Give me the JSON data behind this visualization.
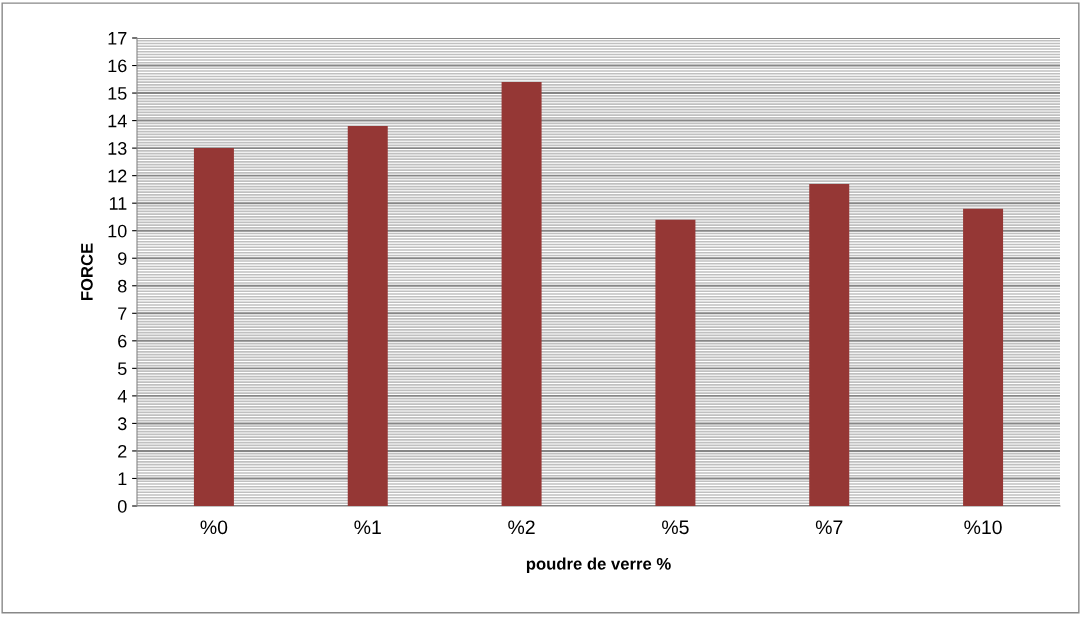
{
  "chart_data": {
    "type": "bar",
    "xlabel": "poudre de verre %",
    "ylabel": "FORCE",
    "categories": [
      "%0",
      "%1",
      "%2",
      "%5",
      "%7",
      "%10"
    ],
    "values": [
      13,
      13.8,
      15.4,
      10.4,
      11.7,
      10.8
    ],
    "color": "#953735",
    "ylim": [
      0,
      17
    ],
    "yticks": [
      0,
      1,
      2,
      3,
      4,
      5,
      6,
      7,
      8,
      9,
      10,
      11,
      12,
      13,
      14,
      15,
      16,
      17
    ],
    "grid": "y",
    "legend": false
  }
}
